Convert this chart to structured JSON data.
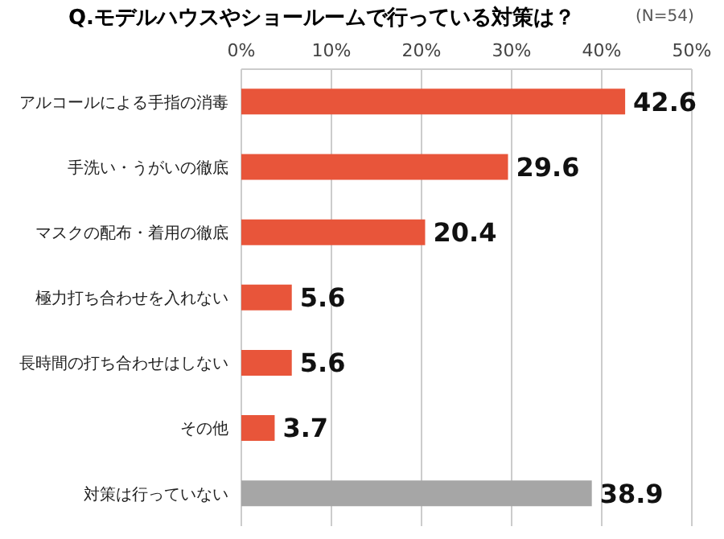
{
  "chart_data": {
    "type": "bar",
    "orientation": "horizontal",
    "title": "Q.モデルハウスやショールームで行っている対策は？",
    "subtitle": "(N=54)",
    "categories": [
      "アルコールによる手指の消毒",
      "手洗い・うがいの徹底",
      "マスクの配布・着用の徹底",
      "極力打ち合わせを入れない",
      "長時間の打ち合わせはしない",
      "その他",
      "対策は行っていない"
    ],
    "values": [
      42.6,
      29.6,
      20.4,
      5.6,
      5.6,
      3.7,
      38.9
    ],
    "colors": [
      "#e8553a",
      "#e8553a",
      "#e8553a",
      "#e8553a",
      "#e8553a",
      "#e8553a",
      "#a6a6a6"
    ],
    "xlim": [
      0,
      50
    ],
    "xticks": [
      {
        "value": 0,
        "label": "0%"
      },
      {
        "value": 10,
        "label": "10%"
      },
      {
        "value": 20,
        "label": "20%"
      },
      {
        "value": 30,
        "label": "30%"
      },
      {
        "value": 40,
        "label": "40%"
      },
      {
        "value": 50,
        "label": "50%"
      }
    ],
    "grid": "x",
    "data_labels": true
  }
}
